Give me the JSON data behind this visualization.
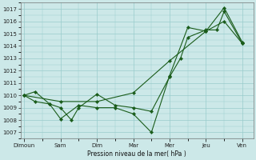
{
  "xlabel": "Pression niveau de la mer( hPa )",
  "xtick_labels": [
    "Dimoun",
    "Sam",
    "Dim",
    "Mar",
    "Mer",
    "Jeu",
    "Ven"
  ],
  "xtick_positions": [
    0,
    1,
    2,
    3,
    4,
    5,
    6
  ],
  "ylim": [
    1006.5,
    1017.5
  ],
  "yticks": [
    1007,
    1008,
    1009,
    1010,
    1011,
    1012,
    1013,
    1014,
    1015,
    1016,
    1017
  ],
  "background_color": "#cce8e8",
  "grid_color": "#99cccc",
  "line_color": "#1a5c1a",
  "series1_x": [
    0.0,
    0.3,
    0.7,
    1.0,
    1.3,
    1.5,
    2.0,
    2.5,
    3.0,
    3.5,
    4.0,
    4.3,
    4.5,
    5.0,
    5.3,
    5.5,
    6.0
  ],
  "series1_y": [
    1010.0,
    1010.3,
    1009.3,
    1009.0,
    1008.0,
    1009.0,
    1010.1,
    1009.2,
    1009.0,
    1008.7,
    1011.5,
    1013.0,
    1014.7,
    1015.3,
    1015.3,
    1016.8,
    1014.2
  ],
  "series2_x": [
    0.0,
    0.3,
    0.7,
    1.0,
    1.5,
    2.0,
    2.5,
    3.0,
    3.5,
    4.0,
    4.5,
    5.0,
    5.5,
    6.0
  ],
  "series2_y": [
    1010.0,
    1009.5,
    1009.3,
    1008.1,
    1009.2,
    1009.0,
    1009.0,
    1008.5,
    1007.0,
    1011.6,
    1015.5,
    1015.2,
    1017.1,
    1014.3
  ],
  "series3_x": [
    0.0,
    1.0,
    2.0,
    3.0,
    4.0,
    5.0,
    5.5,
    6.0
  ],
  "series3_y": [
    1010.0,
    1009.5,
    1009.5,
    1010.2,
    1012.8,
    1015.2,
    1016.0,
    1014.2
  ]
}
